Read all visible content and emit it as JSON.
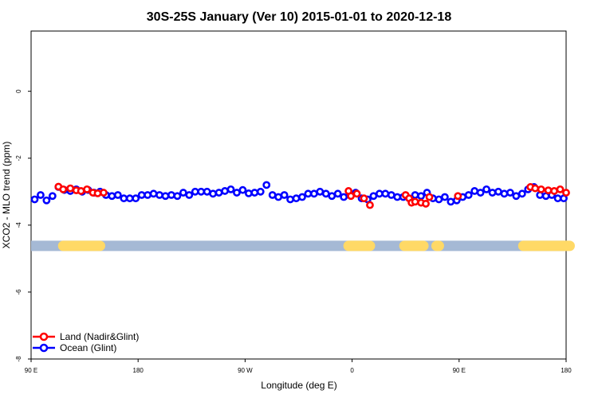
{
  "chart_data": {
    "type": "scatter",
    "title": "30S-25S January (Ver 10)   2015-01-01 to 2020-12-18",
    "xlabel": "Longitude (deg E)",
    "ylabel": "XCO2 - MLO trend (ppm)",
    "x_ticks": [
      {
        "value": 90,
        "label": "90 E"
      },
      {
        "value": 180,
        "label": "180"
      },
      {
        "value": 270,
        "label": "90 W"
      },
      {
        "value": 360,
        "label": "0"
      },
      {
        "value": 450,
        "label": "90 E"
      },
      {
        "value": 540,
        "label": "180"
      }
    ],
    "y_ticks": [
      0,
      -2,
      -4,
      -6,
      -8
    ],
    "xlim": [
      90,
      540
    ],
    "ylim": [
      -8,
      1.8
    ],
    "legend_position": "bottom-left",
    "colors": {
      "land": "#ff0000",
      "ocean": "#0000ff",
      "ocean_band": "#a5b9d5",
      "land_band": "#ffd966"
    },
    "series": [
      {
        "name": "Land (Nadir&Glint)",
        "points": [
          [
            113,
            -2.85
          ],
          [
            117,
            -2.93
          ],
          [
            123,
            -2.9
          ],
          [
            128,
            -2.96
          ],
          [
            132,
            -2.98
          ],
          [
            137,
            -2.93
          ],
          [
            142,
            -3.03
          ],
          [
            146,
            -3.05
          ],
          [
            151,
            -3.03
          ],
          [
            357,
            -2.98
          ],
          [
            359,
            -3.13
          ],
          [
            364,
            -3.06
          ],
          [
            370,
            -3.2
          ],
          [
            375,
            -3.4
          ],
          [
            405,
            -3.1
          ],
          [
            408,
            -3.2
          ],
          [
            410,
            -3.33
          ],
          [
            413,
            -3.3
          ],
          [
            418,
            -3.33
          ],
          [
            422,
            -3.36
          ],
          [
            425,
            -3.16
          ],
          [
            449,
            -3.13
          ],
          [
            510,
            -2.86
          ],
          [
            514,
            -2.9
          ],
          [
            519,
            -2.93
          ],
          [
            525,
            -2.96
          ],
          [
            530,
            -2.98
          ],
          [
            535,
            -2.93
          ],
          [
            540,
            -3.03
          ],
          [
            545,
            -3.05
          ],
          [
            550,
            -3.03
          ]
        ]
      },
      {
        "name": "Ocean (Glint)",
        "points": [
          [
            93,
            -3.23
          ],
          [
            98,
            -3.1
          ],
          [
            103,
            -3.26
          ],
          [
            108,
            -3.13
          ],
          [
            113,
            -2.86
          ],
          [
            118,
            -2.95
          ],
          [
            123,
            -2.98
          ],
          [
            128,
            -2.93
          ],
          [
            133,
            -3.0
          ],
          [
            138,
            -2.95
          ],
          [
            143,
            -3.03
          ],
          [
            148,
            -3.0
          ],
          [
            153,
            -3.1
          ],
          [
            158,
            -3.13
          ],
          [
            163,
            -3.1
          ],
          [
            168,
            -3.2
          ],
          [
            173,
            -3.2
          ],
          [
            178,
            -3.2
          ],
          [
            183,
            -3.1
          ],
          [
            188,
            -3.1
          ],
          [
            193,
            -3.06
          ],
          [
            198,
            -3.1
          ],
          [
            203,
            -3.13
          ],
          [
            208,
            -3.1
          ],
          [
            213,
            -3.13
          ],
          [
            218,
            -3.03
          ],
          [
            223,
            -3.1
          ],
          [
            228,
            -3.0
          ],
          [
            233,
            -3.0
          ],
          [
            238,
            -3.0
          ],
          [
            243,
            -3.06
          ],
          [
            248,
            -3.03
          ],
          [
            253,
            -2.98
          ],
          [
            258,
            -2.93
          ],
          [
            263,
            -3.03
          ],
          [
            268,
            -2.95
          ],
          [
            273,
            -3.05
          ],
          [
            278,
            -3.03
          ],
          [
            283,
            -3.0
          ],
          [
            288,
            -2.8
          ],
          [
            293,
            -3.1
          ],
          [
            298,
            -3.16
          ],
          [
            303,
            -3.1
          ],
          [
            308,
            -3.23
          ],
          [
            313,
            -3.2
          ],
          [
            318,
            -3.16
          ],
          [
            323,
            -3.06
          ],
          [
            328,
            -3.06
          ],
          [
            333,
            -3.0
          ],
          [
            338,
            -3.06
          ],
          [
            343,
            -3.13
          ],
          [
            348,
            -3.06
          ],
          [
            353,
            -3.16
          ],
          [
            358,
            -3.1
          ],
          [
            363,
            -3.03
          ],
          [
            368,
            -3.2
          ],
          [
            373,
            -3.23
          ],
          [
            378,
            -3.13
          ],
          [
            383,
            -3.06
          ],
          [
            388,
            -3.06
          ],
          [
            393,
            -3.1
          ],
          [
            398,
            -3.16
          ],
          [
            403,
            -3.16
          ],
          [
            408,
            -3.2
          ],
          [
            413,
            -3.1
          ],
          [
            418,
            -3.13
          ],
          [
            423,
            -3.03
          ],
          [
            428,
            -3.2
          ],
          [
            433,
            -3.23
          ],
          [
            438,
            -3.16
          ],
          [
            443,
            -3.3
          ],
          [
            448,
            -3.26
          ],
          [
            453,
            -3.16
          ],
          [
            458,
            -3.1
          ],
          [
            463,
            -2.98
          ],
          [
            468,
            -3.03
          ],
          [
            473,
            -2.93
          ],
          [
            478,
            -3.03
          ],
          [
            483,
            -3.0
          ],
          [
            488,
            -3.06
          ],
          [
            493,
            -3.03
          ],
          [
            498,
            -3.13
          ],
          [
            503,
            -3.06
          ],
          [
            508,
            -2.93
          ],
          [
            513,
            -2.86
          ],
          [
            518,
            -3.1
          ],
          [
            523,
            -3.13
          ],
          [
            528,
            -3.1
          ],
          [
            533,
            -3.2
          ],
          [
            538,
            -3.2
          ],
          [
            543,
            -3.23
          ]
        ]
      }
    ],
    "surface_band": {
      "y": -4.62,
      "land_ranges": [
        [
          117,
          148
        ],
        [
          357,
          375
        ],
        [
          404,
          420
        ],
        [
          431,
          433
        ],
        [
          504,
          543
        ]
      ]
    }
  }
}
